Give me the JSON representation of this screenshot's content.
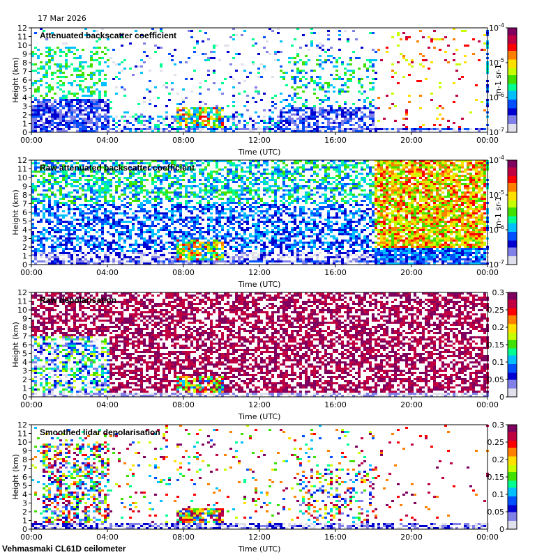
{
  "header": {
    "date": "17 Mar 2026"
  },
  "footer": {
    "instrument": "Vehmasmaki CL61D ceilometer"
  },
  "palette": {
    "jet": [
      "#e0e0ec",
      "#8080e8",
      "#0000d0",
      "#0050ff",
      "#00c0ff",
      "#00ff90",
      "#40e000",
      "#c8ff00",
      "#ffe000",
      "#ff8000",
      "#ff0000",
      "#c00040",
      "#800060"
    ],
    "background": "#ffffff"
  },
  "chart_data": [
    {
      "type": "heatmap",
      "title": "Attenuated backscatter coefficient",
      "xlabel": "Time (UTC)",
      "ylabel": "Height (km)",
      "x_ticks": [
        "00:00",
        "04:00",
        "08:00",
        "12:00",
        "16:00",
        "20:00",
        "00:00"
      ],
      "x_range_hours": [
        0,
        24
      ],
      "y_ticks": [
        0,
        1,
        2,
        3,
        4,
        5,
        6,
        7,
        8,
        9,
        10,
        11,
        12
      ],
      "ylim": [
        0,
        12
      ],
      "colorbar": {
        "scale": "log",
        "ticks": [
          "10-7",
          "10-6",
          "10-5",
          "10-4"
        ],
        "exponents": [
          -7,
          -6,
          -5,
          -4
        ],
        "unit": "m-1 sr-1"
      },
      "pattern": "attenuated"
    },
    {
      "type": "heatmap",
      "title": "Raw attenuated backscatter coefficient",
      "xlabel": "Time (UTC)",
      "ylabel": "Height (km)",
      "x_ticks": [
        "00:00",
        "04:00",
        "08:00",
        "12:00",
        "16:00",
        "20:00",
        "00:00"
      ],
      "x_range_hours": [
        0,
        24
      ],
      "y_ticks": [
        0,
        1,
        2,
        3,
        4,
        5,
        6,
        7,
        8,
        9,
        10,
        11,
        12
      ],
      "ylim": [
        0,
        12
      ],
      "colorbar": {
        "scale": "log",
        "ticks": [
          "10-7",
          "10-6",
          "10-5",
          "10-4"
        ],
        "exponents": [
          -7,
          -6,
          -5,
          -4
        ],
        "unit": "m-1 sr-1"
      },
      "pattern": "raw"
    },
    {
      "type": "heatmap",
      "title": "Raw depolarisation",
      "xlabel": "Time (UTC)",
      "ylabel": "Height (km)",
      "x_ticks": [
        "00:00",
        "04:00",
        "08:00",
        "12:00",
        "16:00",
        "20:00",
        "00:00"
      ],
      "x_range_hours": [
        0,
        24
      ],
      "y_ticks": [
        0,
        1,
        2,
        3,
        4,
        5,
        6,
        7,
        8,
        9,
        10,
        11,
        12
      ],
      "ylim": [
        0,
        12
      ],
      "colorbar": {
        "scale": "linear",
        "ticks": [
          "0",
          "0.05",
          "0.1",
          "0.15",
          "0.2",
          "0.25",
          "0.3"
        ],
        "range": [
          0,
          0.3
        ]
      },
      "pattern": "rawdepol"
    },
    {
      "type": "heatmap",
      "title": "Smoothed lidar depolarisation",
      "xlabel": "Time (UTC)",
      "ylabel": "Height (km)",
      "x_ticks": [
        "00:00",
        "04:00",
        "08:00",
        "12:00",
        "16:00",
        "20:00",
        "00:00"
      ],
      "x_range_hours": [
        0,
        24
      ],
      "y_ticks": [
        0,
        1,
        2,
        3,
        4,
        5,
        6,
        7,
        8,
        9,
        10,
        11,
        12
      ],
      "ylim": [
        0,
        12
      ],
      "colorbar": {
        "scale": "linear",
        "ticks": [
          "0",
          "0.05",
          "0.1",
          "0.15",
          "0.2",
          "0.25",
          "0.3"
        ],
        "range": [
          0,
          0.3
        ]
      },
      "pattern": "smoothdepol"
    }
  ]
}
